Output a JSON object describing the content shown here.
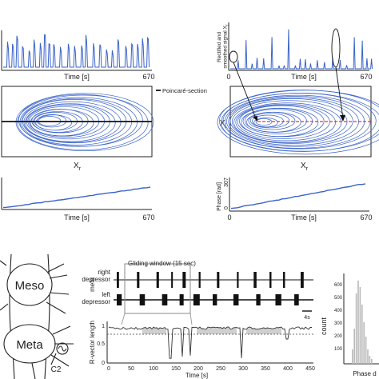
{
  "colors": {
    "trace_blue": "#3a63c9",
    "axis": "#222222",
    "poincare_red": "#d83a3a",
    "gray_fill": "#cfcfcf",
    "window_box": "#8a8a8a"
  },
  "panel_a": {
    "signal_xlabel": "Time [s]",
    "signal_tick_end": "670",
    "phase_space_xlabel": "X",
    "phase_space_xlabel_sub": "r",
    "poincare_legend": "Poincaré-section",
    "phase_xlabel": "Time [s]",
    "phase_tick_end": "670"
  },
  "panel_b": {
    "signal_ylabel_line1": "Rectified and",
    "signal_ylabel_line2": "smoothed signal X",
    "signal_ylabel_sub": "r",
    "signal_xlabel": "Time [s]",
    "signal_tick_start": "0",
    "signal_tick_end": "670",
    "phase_space_ylabel": "X",
    "phase_space_ylabel_sub": "i",
    "phase_space_xlabel": "X",
    "phase_space_xlabel_sub": "r",
    "phase_ylabel": "Phase [rad]",
    "phase_ytick_top": "307",
    "phase_ytick_bottom": "0",
    "phase_xlabel": "Time [s]",
    "phase_tick_start": "0",
    "phase_tick_end": "670"
  },
  "panel_c": {
    "label_meso": "Meso",
    "label_meta": "Meta",
    "label_c2": "C2"
  },
  "panel_d": {
    "window_label": "Gliding window (15 sec)",
    "row_label_meta": "meta",
    "row1_line1": "right",
    "row1_line2": "depressor",
    "row2_line1": "left",
    "row2_line2": "depressor",
    "scalebar_label": "4s",
    "ylabel": "R-vector length",
    "yticks": [
      "1",
      "0.5",
      "0"
    ],
    "xticks": [
      "0",
      "50",
      "100",
      "150",
      "200",
      "250",
      "300",
      "350",
      "400",
      "450"
    ],
    "xlabel": "Time [s]"
  },
  "panel_e": {
    "ylabel": "count",
    "yticks": [
      "600",
      "500",
      "400",
      "300",
      "200",
      "100"
    ],
    "xlabel": "Phase d"
  }
}
